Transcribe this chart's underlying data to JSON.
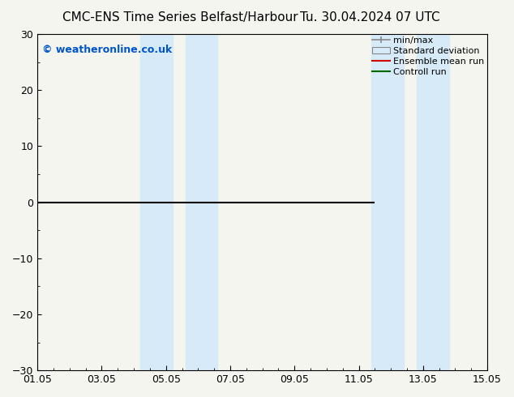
{
  "title_left": "CMC-ENS Time Series Belfast/Harbour",
  "title_right": "Tu. 30.04.2024 07 UTC",
  "watermark": "© weatheronline.co.uk",
  "watermark_color": "#0055cc",
  "ylim": [
    -30,
    30
  ],
  "yticks": [
    -30,
    -20,
    -10,
    0,
    10,
    20,
    30
  ],
  "xlim_num": [
    0,
    14
  ],
  "xtick_labels": [
    "01.05",
    "03.05",
    "05.05",
    "07.05",
    "09.05",
    "11.05",
    "13.05",
    "15.05"
  ],
  "xtick_positions": [
    0,
    2,
    4,
    6,
    8,
    10,
    12,
    14
  ],
  "shaded_bands": [
    [
      3.2,
      4.2
    ],
    [
      4.6,
      5.6
    ],
    [
      10.4,
      11.4
    ],
    [
      11.8,
      12.8
    ]
  ],
  "shaded_color": "#d6eaf8",
  "hline_y": 0,
  "hline_color": "#000000",
  "hline_xstart": 0,
  "hline_xend": 10.5,
  "legend_labels": [
    "min/max",
    "Standard deviation",
    "Ensemble mean run",
    "Controll run"
  ],
  "legend_line_colors": [
    "#888888",
    "#cccccc",
    "#cc0000",
    "#006600"
  ],
  "bg_color": "#f5f5f0",
  "plot_bg_color": "#f5f5f0",
  "title_fontsize": 11,
  "tick_fontsize": 9,
  "watermark_fontsize": 9
}
